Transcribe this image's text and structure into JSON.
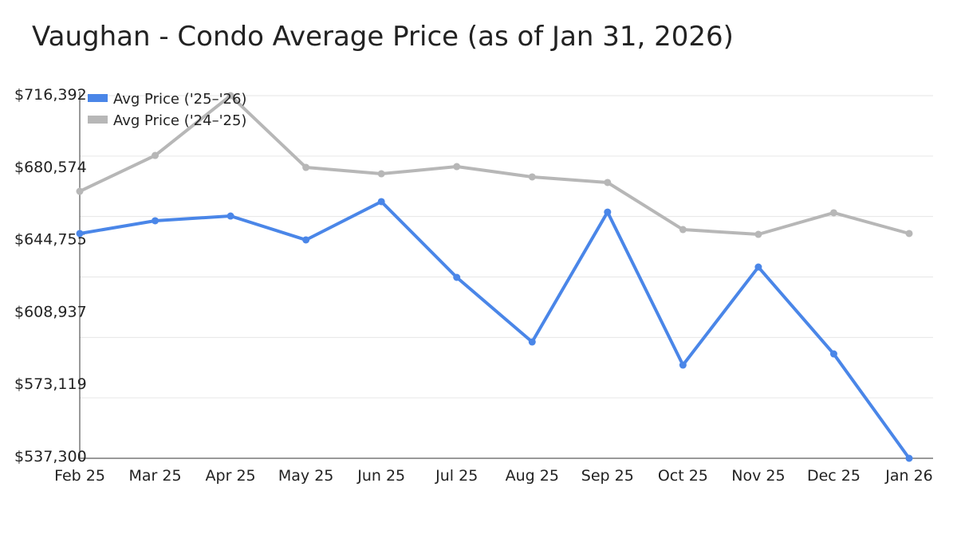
{
  "chart_data": {
    "type": "line",
    "title": "Vaughan - Condo Average Price (as of Jan 31, 2026)",
    "xlabel": "",
    "ylabel": "",
    "categories": [
      "Feb 25",
      "Mar 25",
      "Apr 25",
      "May 25",
      "Jun 25",
      "Jul 25",
      "Aug 25",
      "Sep 25",
      "Oct 25",
      "Nov 25",
      "Dec 25",
      "Jan 26"
    ],
    "ylim": [
      537300,
      716392
    ],
    "yticks": [
      "$716,392",
      "$680,574",
      "$644,755",
      "$608,937",
      "$573,119",
      "$537,300"
    ],
    "grid": true,
    "legend_position": "top-left",
    "series": [
      {
        "name": "Avg Price ('25–'26)",
        "color": "#4a86e8",
        "values": [
          648300,
          654600,
          656950,
          645150,
          664050,
          626650,
          594750,
          658900,
          583350,
          631750,
          588850,
          537300
        ]
      },
      {
        "name": "Avg Price ('24–'25)",
        "color": "#b7b7b7",
        "values": [
          669150,
          686850,
          716392,
          680950,
          677800,
          681350,
          676250,
          673500,
          650250,
          647900,
          658550,
          648300
        ]
      }
    ]
  }
}
